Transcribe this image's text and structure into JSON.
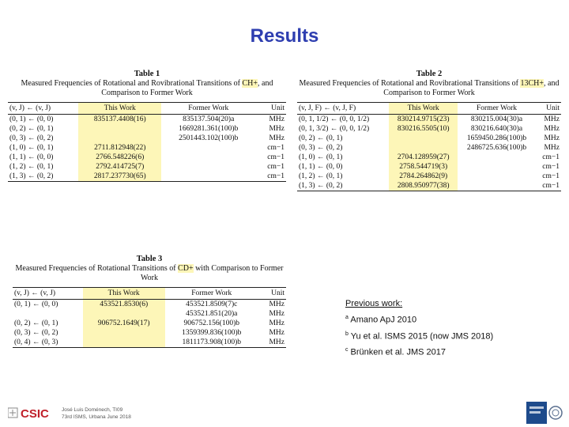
{
  "slide_title": "Results",
  "table1": {
    "label": "Table 1",
    "caption_pre": "Measured Frequencies of Rotational and Rovibrational Transitions of ",
    "caption_species": "CH+",
    "caption_post": ", and Comparison to Former Work",
    "headers": [
      "(v, J) ← (v, J)",
      "This Work",
      "Former Work",
      "Unit"
    ],
    "rows": [
      [
        "(0, 1) ← (0, 0)",
        "835137.4408(16)",
        "835137.504(20)a",
        "MHz"
      ],
      [
        "(0, 2) ← (0, 1)",
        "",
        "1669281.361(100)b",
        "MHz"
      ],
      [
        "(0, 3) ← (0, 2)",
        "",
        "2501443.102(100)b",
        "MHz"
      ],
      [
        "(1, 0) ← (0, 1)",
        "2711.812948(22)",
        "",
        "cm−1"
      ],
      [
        "(1, 1) ← (0, 0)",
        "2766.548226(6)",
        "",
        "cm−1"
      ],
      [
        "(1, 2) ← (0, 1)",
        "2792.414725(7)",
        "",
        "cm−1"
      ],
      [
        "(1, 3) ← (0, 2)",
        "2817.237730(65)",
        "",
        "cm−1"
      ]
    ]
  },
  "table2": {
    "label": "Table 2",
    "caption_pre": "Measured Frequencies of Rotational and Rovibrational Transitions of ",
    "caption_species": "13CH+",
    "caption_post": ", and Comparison to Former Work",
    "headers": [
      "(v, J, F) ← (v, J, F)",
      "This Work",
      "Former Work",
      "Unit"
    ],
    "rows": [
      [
        "(0, 1, 1/2) ← (0, 0, 1/2)",
        "830214.9715(23)",
        "830215.004(30)a",
        "MHz"
      ],
      [
        "(0, 1, 3/2) ← (0, 0, 1/2)",
        "830216.5505(10)",
        "830216.640(30)a",
        "MHz"
      ],
      [
        "(0, 2) ← (0, 1)",
        "",
        "1659450.286(100)b",
        "MHz"
      ],
      [
        "(0, 3) ← (0, 2)",
        "",
        "2486725.636(100)b",
        "MHz"
      ],
      [
        "(1, 0) ← (0, 1)",
        "2704.128959(27)",
        "",
        "cm−1"
      ],
      [
        "(1, 1) ← (0, 0)",
        "2758.544719(3)",
        "",
        "cm−1"
      ],
      [
        "(1, 2) ← (0, 1)",
        "2784.264862(9)",
        "",
        "cm−1"
      ],
      [
        "(1, 3) ← (0, 2)",
        "2808.950977(38)",
        "",
        "cm−1"
      ]
    ]
  },
  "table3": {
    "label": "Table 3",
    "caption_pre": "Measured Frequencies of Rotational Transitions of ",
    "caption_species": "CD+",
    "caption_post": " with Comparison to Former Work",
    "headers": [
      "(v, J) ← (v, J)",
      "This Work",
      "Former Work",
      "Unit"
    ],
    "rows": [
      [
        "(0, 1) ← (0, 0)",
        "453521.8530(6)",
        "453521.8509(7)c",
        "MHz"
      ],
      [
        "",
        "",
        "453521.851(20)a",
        "MHz"
      ],
      [
        "(0, 2) ← (0, 1)",
        "906752.1649(17)",
        "906752.156(100)b",
        "MHz"
      ],
      [
        "(0, 3) ← (0, 2)",
        "",
        "1359399.836(100)b",
        "MHz"
      ],
      [
        "(0, 4) ← (0, 3)",
        "",
        "1811173.908(100)b",
        "MHz"
      ]
    ]
  },
  "notes": {
    "heading": "Previous work:",
    "items": [
      {
        "mark": "a",
        "text": "Amano ApJ 2010"
      },
      {
        "mark": "b",
        "text": "Yu et al. ISMS 2015 (now JMS 2018)"
      },
      {
        "mark": "c",
        "text": "Brünken et al. JMS 2017"
      }
    ]
  },
  "footer": {
    "line1": "José Luis Doménech, TI09",
    "line2": "73rd ISMS, Urbana June 2018"
  },
  "colors": {
    "title": "#2e3eb0",
    "highlight": "#fdf6b8",
    "logo_red": "#c0202a"
  }
}
